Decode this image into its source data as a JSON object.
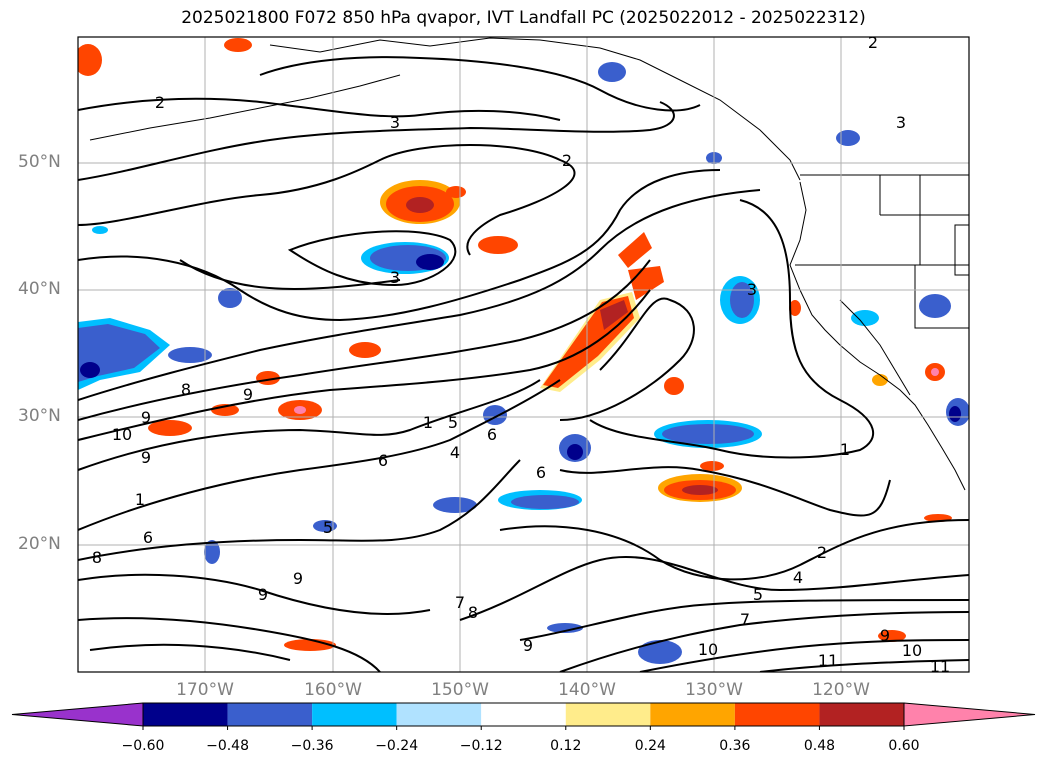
{
  "title": "2025021800 F072 850 hPa qvapor, IVT Landfall PC (2025022012 - 2025022312)",
  "lat_labels": [
    "50°N",
    "40°N",
    "30°N",
    "20°N"
  ],
  "lon_labels": [
    "170°W",
    "160°W",
    "150°W",
    "140°W",
    "130°W",
    "120°W"
  ],
  "colorbar": {
    "ticks": [
      "−0.60",
      "−0.48",
      "−0.36",
      "−0.24",
      "−0.12",
      "0.12",
      "0.24",
      "0.36",
      "0.48",
      "0.60"
    ],
    "colors": [
      "#9932cc",
      "#00008b",
      "#3a5fcd",
      "#00bfff",
      "#b0e2ff",
      "#ffffff",
      "#ffec8b",
      "#ffa500",
      "#ff4500",
      "#b22222",
      "#ff82ab"
    ]
  },
  "contour_labels": [
    "2",
    "2",
    "3",
    "2",
    "3",
    "3",
    "8",
    "9",
    "10",
    "9",
    "9",
    "1",
    "5",
    "6",
    "4",
    "6",
    "5",
    "6",
    "1",
    "2",
    "4",
    "5",
    "7",
    "9",
    "10",
    "11",
    "10",
    "11",
    "9",
    "8",
    "7",
    "9",
    "9",
    "8",
    "6",
    "3",
    "1"
  ]
}
